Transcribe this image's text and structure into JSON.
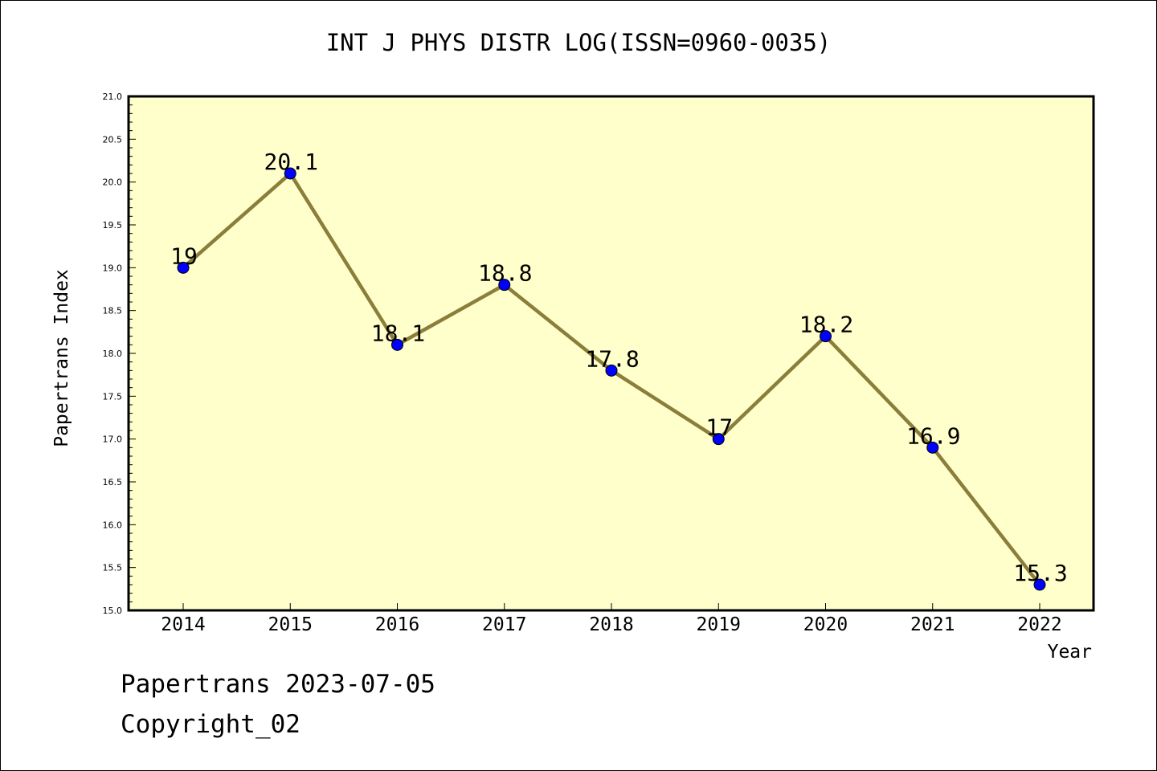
{
  "chart_data": {
    "type": "line",
    "title": "INT J PHYS DISTR LOG(ISSN=0960-0035)",
    "xlabel": "Year",
    "ylabel": "Papertrans Index",
    "categories": [
      "2014",
      "2015",
      "2016",
      "2017",
      "2018",
      "2019",
      "2020",
      "2021",
      "2022"
    ],
    "values": [
      19,
      20.1,
      18.1,
      18.8,
      17.8,
      17,
      18.2,
      16.9,
      15.3
    ],
    "data_labels": [
      "19",
      "20.1",
      "18.1",
      "18.8",
      "17.8",
      "17",
      "18.2",
      "16.9",
      "15.3"
    ],
    "ylim": [
      15.0,
      21.0
    ],
    "yticks": [
      "15.0",
      "15.5",
      "16.0",
      "16.5",
      "17.0",
      "17.5",
      "18.0",
      "18.5",
      "19.0",
      "19.5",
      "20.0",
      "20.5",
      "21.0"
    ],
    "grid": false,
    "colors": {
      "plot_background": "#ffffcc",
      "line": "#8b7d3a",
      "marker": "#0000ff"
    }
  },
  "footer": {
    "line1": "Papertrans 2023-07-05",
    "line2": "Copyright_02"
  }
}
